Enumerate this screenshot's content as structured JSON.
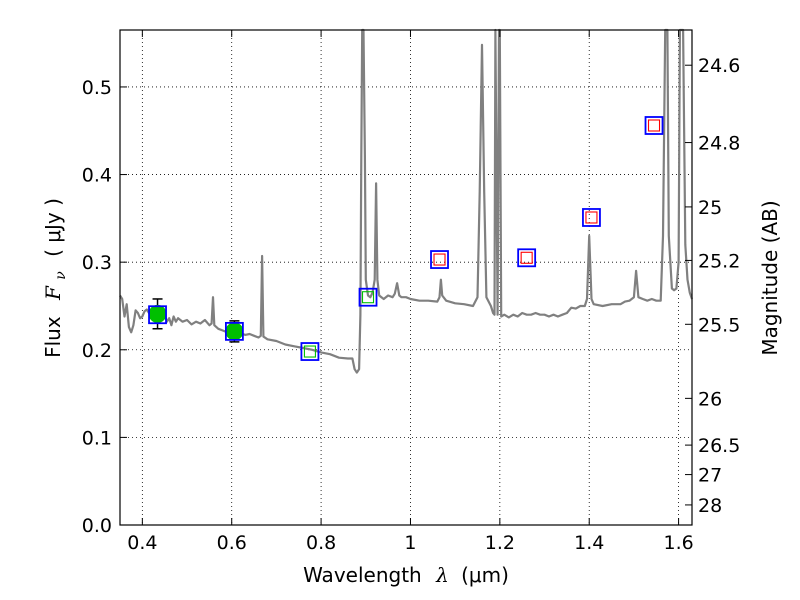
{
  "chart_data": {
    "type": "line",
    "xlabel_text": "Wavelength",
    "xlabel_symbol": "λ",
    "xlabel_unit": "(μm)",
    "ylabel_text": "Flux",
    "ylabel_symbol": "F",
    "ylabel_subscript": "ν",
    "ylabel_unit": "( μJy )",
    "y2label": "Magnitude (AB)",
    "xlim": [
      0.35,
      1.63
    ],
    "ylim": [
      0.0,
      0.565
    ],
    "grid": true,
    "x_ticks": [
      0.4,
      0.6,
      0.8,
      1.0,
      1.2,
      1.4,
      1.6
    ],
    "x_tick_labels": [
      "0.4",
      "0.6",
      "0.8",
      "1",
      "1.2",
      "1.4",
      "1.6"
    ],
    "y_ticks": [
      0.0,
      0.1,
      0.2,
      0.3,
      0.4,
      0.5
    ],
    "y_tick_labels": [
      "0.0",
      "0.1",
      "0.2",
      "0.3",
      "0.4",
      "0.5"
    ],
    "y2_ticks": [
      {
        "label": "24.6",
        "mag": 24.6
      },
      {
        "label": "24.8",
        "mag": 24.8
      },
      {
        "label": "25",
        "mag": 25.0
      },
      {
        "label": "25.2",
        "mag": 25.2
      },
      {
        "label": "25.5",
        "mag": 25.5
      },
      {
        "label": "26",
        "mag": 26.0
      },
      {
        "label": "26.5",
        "mag": 26.5
      },
      {
        "label": "27",
        "mag": 27.0
      },
      {
        "label": "28",
        "mag": 28.0
      }
    ],
    "series": [
      {
        "kind": "model-spectrum",
        "color": "#808080",
        "points": [
          [
            0.35,
            0.262
          ],
          [
            0.355,
            0.258
          ],
          [
            0.36,
            0.238
          ],
          [
            0.365,
            0.252
          ],
          [
            0.37,
            0.226
          ],
          [
            0.375,
            0.22
          ],
          [
            0.38,
            0.228
          ],
          [
            0.385,
            0.245
          ],
          [
            0.39,
            0.242
          ],
          [
            0.395,
            0.236
          ],
          [
            0.4,
            0.238
          ],
          [
            0.405,
            0.244
          ],
          [
            0.41,
            0.246
          ],
          [
            0.415,
            0.242
          ],
          [
            0.42,
            0.236
          ],
          [
            0.425,
            0.24
          ],
          [
            0.43,
            0.238
          ],
          [
            0.44,
            0.242
          ],
          [
            0.445,
            0.236
          ],
          [
            0.45,
            0.24
          ],
          [
            0.455,
            0.232
          ],
          [
            0.46,
            0.236
          ],
          [
            0.465,
            0.228
          ],
          [
            0.47,
            0.238
          ],
          [
            0.475,
            0.232
          ],
          [
            0.48,
            0.236
          ],
          [
            0.49,
            0.232
          ],
          [
            0.5,
            0.234
          ],
          [
            0.51,
            0.229
          ],
          [
            0.52,
            0.232
          ],
          [
            0.53,
            0.23
          ],
          [
            0.54,
            0.234
          ],
          [
            0.55,
            0.228
          ],
          [
            0.555,
            0.23
          ],
          [
            0.558,
            0.26
          ],
          [
            0.561,
            0.228
          ],
          [
            0.57,
            0.224
          ],
          [
            0.58,
            0.222
          ],
          [
            0.59,
            0.22
          ],
          [
            0.6,
            0.221
          ],
          [
            0.61,
            0.222
          ],
          [
            0.62,
            0.219
          ],
          [
            0.63,
            0.217
          ],
          [
            0.64,
            0.218
          ],
          [
            0.65,
            0.216
          ],
          [
            0.66,
            0.214
          ],
          [
            0.665,
            0.216
          ],
          [
            0.668,
            0.307
          ],
          [
            0.671,
            0.215
          ],
          [
            0.68,
            0.212
          ],
          [
            0.7,
            0.21
          ],
          [
            0.72,
            0.206
          ],
          [
            0.74,
            0.204
          ],
          [
            0.76,
            0.202
          ],
          [
            0.78,
            0.2
          ],
          [
            0.8,
            0.197
          ],
          [
            0.82,
            0.195
          ],
          [
            0.84,
            0.191
          ],
          [
            0.86,
            0.19
          ],
          [
            0.87,
            0.19
          ],
          [
            0.875,
            0.178
          ],
          [
            0.88,
            0.174
          ],
          [
            0.885,
            0.178
          ],
          [
            0.888,
            0.24
          ],
          [
            0.89,
            0.42
          ],
          [
            0.892,
            0.565
          ],
          [
            0.895,
            0.565
          ],
          [
            0.898,
            0.42
          ],
          [
            0.9,
            0.28
          ],
          [
            0.905,
            0.262
          ],
          [
            0.91,
            0.26
          ],
          [
            0.915,
            0.265
          ],
          [
            0.92,
            0.28
          ],
          [
            0.923,
            0.39
          ],
          [
            0.926,
            0.28
          ],
          [
            0.93,
            0.262
          ],
          [
            0.94,
            0.258
          ],
          [
            0.95,
            0.262
          ],
          [
            0.96,
            0.26
          ],
          [
            0.965,
            0.264
          ],
          [
            0.97,
            0.276
          ],
          [
            0.975,
            0.262
          ],
          [
            0.98,
            0.26
          ],
          [
            0.99,
            0.26
          ],
          [
            1.0,
            0.258
          ],
          [
            1.02,
            0.256
          ],
          [
            1.04,
            0.256
          ],
          [
            1.06,
            0.255
          ],
          [
            1.065,
            0.26
          ],
          [
            1.068,
            0.28
          ],
          [
            1.071,
            0.262
          ],
          [
            1.08,
            0.256
          ],
          [
            1.1,
            0.253
          ],
          [
            1.12,
            0.252
          ],
          [
            1.14,
            0.25
          ],
          [
            1.15,
            0.26
          ],
          [
            1.155,
            0.38
          ],
          [
            1.16,
            0.548
          ],
          [
            1.165,
            0.38
          ],
          [
            1.17,
            0.26
          ],
          [
            1.18,
            0.25
          ],
          [
            1.185,
            0.242
          ],
          [
            1.188,
            0.24
          ],
          [
            1.19,
            0.565
          ],
          [
            1.195,
            0.24
          ],
          [
            1.198,
            0.565
          ],
          [
            1.2,
            0.565
          ],
          [
            1.203,
            0.238
          ],
          [
            1.21,
            0.24
          ],
          [
            1.22,
            0.237
          ],
          [
            1.23,
            0.24
          ],
          [
            1.24,
            0.238
          ],
          [
            1.25,
            0.242
          ],
          [
            1.26,
            0.24
          ],
          [
            1.27,
            0.24
          ],
          [
            1.28,
            0.242
          ],
          [
            1.29,
            0.24
          ],
          [
            1.3,
            0.24
          ],
          [
            1.31,
            0.238
          ],
          [
            1.32,
            0.24
          ],
          [
            1.33,
            0.238
          ],
          [
            1.34,
            0.24
          ],
          [
            1.35,
            0.242
          ],
          [
            1.36,
            0.248
          ],
          [
            1.37,
            0.247
          ],
          [
            1.38,
            0.25
          ],
          [
            1.39,
            0.25
          ],
          [
            1.395,
            0.258
          ],
          [
            1.4,
            0.33
          ],
          [
            1.405,
            0.258
          ],
          [
            1.41,
            0.252
          ],
          [
            1.43,
            0.25
          ],
          [
            1.45,
            0.252
          ],
          [
            1.47,
            0.252
          ],
          [
            1.48,
            0.255
          ],
          [
            1.49,
            0.256
          ],
          [
            1.5,
            0.26
          ],
          [
            1.505,
            0.29
          ],
          [
            1.51,
            0.26
          ],
          [
            1.52,
            0.258
          ],
          [
            1.53,
            0.256
          ],
          [
            1.54,
            0.258
          ],
          [
            1.55,
            0.256
          ],
          [
            1.56,
            0.256
          ],
          [
            1.565,
            0.33
          ],
          [
            1.57,
            0.565
          ],
          [
            1.575,
            0.565
          ],
          [
            1.578,
            0.33
          ],
          [
            1.585,
            0.27
          ],
          [
            1.59,
            0.268
          ],
          [
            1.595,
            0.27
          ],
          [
            1.6,
            0.3
          ],
          [
            1.603,
            0.565
          ],
          [
            1.61,
            0.565
          ],
          [
            1.615,
            0.32
          ],
          [
            1.62,
            0.28
          ],
          [
            1.625,
            0.265
          ],
          [
            1.63,
            0.258
          ]
        ]
      },
      {
        "kind": "measured-photometry",
        "marker": "circle",
        "color": "#00bf00",
        "points": [
          {
            "x": 0.434,
            "y": 0.241,
            "err": 0.017
          },
          {
            "x": 0.606,
            "y": 0.221,
            "err": 0.012
          }
        ]
      },
      {
        "kind": "synthetic-photometry",
        "marker": "square",
        "color": "#0000ff",
        "points": [
          {
            "x": 0.434,
            "y": 0.24
          },
          {
            "x": 0.606,
            "y": 0.221
          },
          {
            "x": 0.775,
            "y": 0.198
          },
          {
            "x": 0.905,
            "y": 0.26
          },
          {
            "x": 1.065,
            "y": 0.303
          },
          {
            "x": 1.26,
            "y": 0.305
          },
          {
            "x": 1.405,
            "y": 0.351
          },
          {
            "x": 1.545,
            "y": 0.456
          }
        ]
      },
      {
        "kind": "inner-green-squares",
        "marker": "square",
        "color": "#00bf00",
        "points": [
          {
            "x": 0.775,
            "y": 0.198
          },
          {
            "x": 0.905,
            "y": 0.26
          }
        ]
      },
      {
        "kind": "inner-red-squares",
        "marker": "square",
        "color": "#ff0000",
        "points": [
          {
            "x": 1.065,
            "y": 0.303
          },
          {
            "x": 1.26,
            "y": 0.305
          },
          {
            "x": 1.405,
            "y": 0.351
          },
          {
            "x": 1.545,
            "y": 0.456
          }
        ]
      }
    ]
  }
}
